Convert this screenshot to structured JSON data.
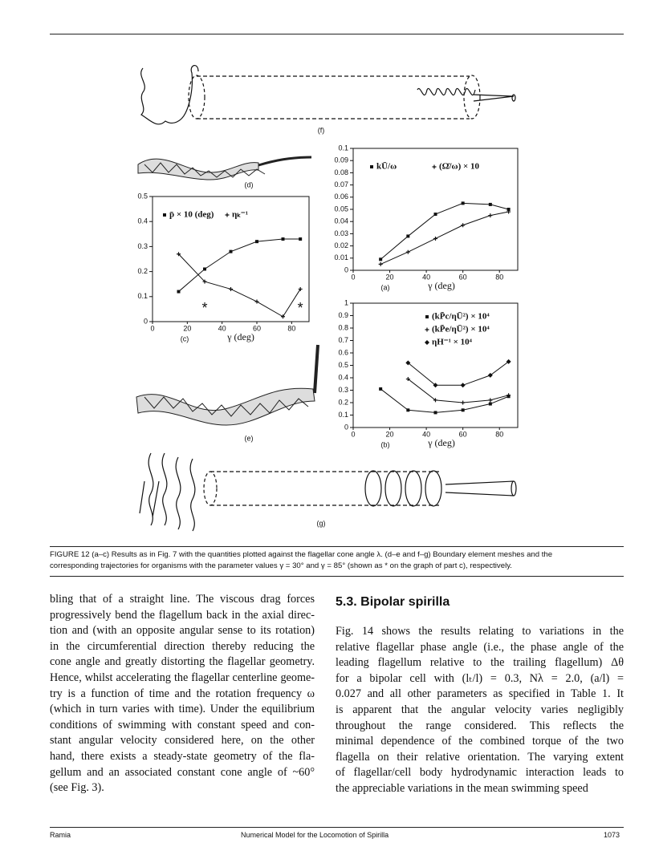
{
  "chart_data": [
    {
      "type": "line",
      "label": "(c)",
      "xlabel": "γ (deg)",
      "x": [
        15,
        30,
        45,
        60,
        75,
        85
      ],
      "series": [
        {
          "name": "p̄ × 10 (deg)",
          "marker": "square",
          "color": "#111111",
          "values": [
            0.12,
            0.21,
            0.28,
            0.32,
            0.33,
            0.33
          ]
        },
        {
          "name": "ηₖ⁻¹",
          "marker": "plus",
          "color": "#111111",
          "values": [
            0.27,
            0.16,
            0.13,
            0.08,
            0.02,
            0.13
          ]
        }
      ],
      "annotations": [
        {
          "text": "*",
          "x": 30,
          "y": 0.05
        },
        {
          "text": "*",
          "x": 85,
          "y": 0.05
        }
      ],
      "xlim": [
        0,
        90
      ],
      "ylim": [
        0,
        0.5
      ],
      "xticks": [
        0,
        20,
        40,
        60,
        80
      ],
      "yticks": [
        0,
        0.1,
        0.2,
        0.3,
        0.4,
        0.5
      ]
    },
    {
      "type": "line",
      "label": "(a)",
      "xlabel": "γ (deg)",
      "x": [
        15,
        30,
        45,
        60,
        75,
        85
      ],
      "series": [
        {
          "name": "kŪ/ω",
          "marker": "square",
          "color": "#111111",
          "values": [
            0.009,
            0.028,
            0.046,
            0.055,
            0.054,
            0.05
          ]
        },
        {
          "name": "(Ω̄/ω) × 10",
          "marker": "plus",
          "color": "#111111",
          "values": [
            0.005,
            0.015,
            0.026,
            0.037,
            0.045,
            0.048
          ]
        }
      ],
      "xlim": [
        0,
        90
      ],
      "ylim": [
        0,
        0.1
      ],
      "xticks": [
        0,
        20,
        40,
        60,
        80
      ],
      "yticks": [
        0,
        0.01,
        0.02,
        0.03,
        0.04,
        0.05,
        0.06,
        0.07,
        0.08,
        0.09,
        0.1
      ]
    },
    {
      "type": "line",
      "label": "(b)",
      "xlabel": "γ (deg)",
      "x": [
        15,
        30,
        45,
        60,
        75,
        85
      ],
      "series": [
        {
          "name": "(kP̄c/ηŪ²) × 10⁴",
          "marker": "square",
          "color": "#111111",
          "values": [
            0.31,
            0.14,
            0.12,
            0.14,
            0.19,
            0.25
          ]
        },
        {
          "name": "(kP̄e/ηŪ²) × 10⁴",
          "marker": "plus",
          "color": "#111111",
          "values": [
            null,
            0.39,
            0.22,
            0.2,
            0.22,
            0.26
          ]
        },
        {
          "name": "ηH⁻¹ × 10⁴",
          "marker": "diamond",
          "color": "#111111",
          "values": [
            null,
            0.52,
            0.34,
            0.34,
            0.42,
            0.53
          ]
        }
      ],
      "xlim": [
        0,
        90
      ],
      "ylim": [
        0,
        1
      ],
      "xticks": [
        0,
        20,
        40,
        60,
        80
      ],
      "yticks": [
        0,
        0.1,
        0.2,
        0.3,
        0.4,
        0.5,
        0.6,
        0.7,
        0.8,
        0.9,
        1
      ]
    }
  ],
  "figure": {
    "panel_labels": {
      "f": "(f)",
      "d": "(d)",
      "e": "(e)",
      "g": "(g)"
    },
    "caption": [
      "FIGURE 12   (a–c) Results as in Fig. 7 with the quantities plotted against the flagellar cone angle λ. (d–e and f–g) Boundary element meshes and the",
      "corresponding trajectories for organisms with the parameter values γ = 30° and γ = 85° (shown as * on the graph of part c), respectively."
    ]
  },
  "body": {
    "left_column": [
      "bling that of a straight line. The viscous drag forces",
      "progressively bend the flagellum back in the axial direc-",
      "tion and (with an opposite angular sense to its rotation)",
      "in the circumferential direction thereby reducing the",
      "cone angle and greatly distorting the flagellar geometry.",
      "Hence, whilst accelerating the flagellar centerline geome-",
      "try is a function of time and the rotation frequency ω",
      "(which in turn varies with time). Under the equilibrium",
      "conditions of swimming with constant speed and con-",
      "stant angular velocity considered here, on the other",
      "hand, there exists a steady-state geometry of the fla-",
      "gellum and an associated constant cone angle of ~60°",
      "(see Fig. 3)."
    ],
    "section_heading": "5.3.  Bipolar spirilla",
    "right_column": [
      "Fig. 14 shows the results relating to variations in the",
      "relative flagellar phase angle (i.e., the phase angle of the",
      "leading flagellum relative to the trailing flagellum) Δθ",
      "for a bipolar cell with (lₜ/l) = 0.3, Nλ = 2.0, (a/l) =",
      "0.027 and all other parameters as specified in Table 1. It",
      "is apparent that the angular velocity varies negligibly",
      "throughout the range considered. This reflects the",
      "minimal dependence of the combined torque of the two",
      "flagella on their relative orientation. The varying extent",
      "of flagellar/cell body hydrodynamic interaction leads to",
      "the appreciable variations in the mean swimming speed"
    ]
  },
  "footer": {
    "author": "Ramia",
    "running_title": "Numerical Model for the Locomotion of Spirilla",
    "page_number": "1073"
  }
}
